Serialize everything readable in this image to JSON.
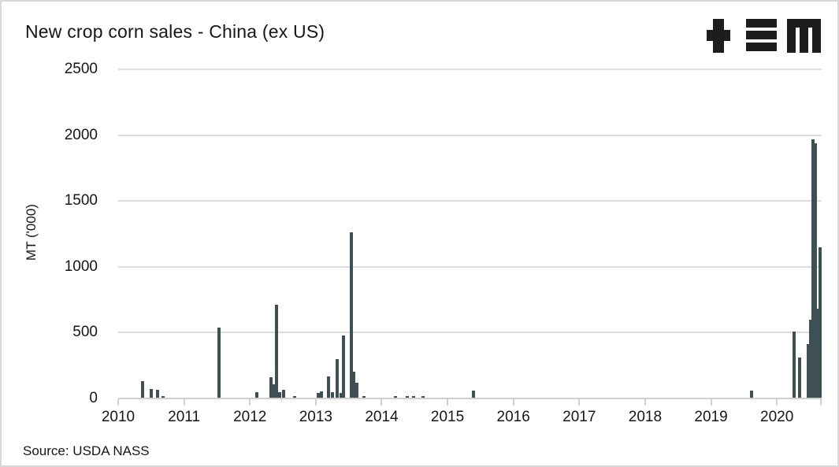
{
  "header": {
    "title": "New crop corn sales - China (ex US)"
  },
  "footer": {
    "source": "Source: USDA NASS"
  },
  "logo": {
    "name": "tem-logo",
    "glyphs": [
      "plus",
      "triple-bar",
      "m-mark"
    ]
  },
  "page": {
    "colors": {
      "bar": "#3f5055",
      "grid": "#dcdcdc",
      "axis": "#cfcfcf",
      "text": "#161616",
      "logo": "#1d1d1d",
      "background": "#ffffff",
      "border": "#d8d8d8"
    }
  },
  "chart_data": {
    "type": "bar",
    "title": "New crop corn sales - China (ex US)",
    "xlabel": "",
    "ylabel": "MT ('000)",
    "xlim": [
      2010,
      2020.68
    ],
    "ylim": [
      0,
      2500
    ],
    "x_ticks": [
      2010,
      2011,
      2012,
      2013,
      2014,
      2015,
      2016,
      2017,
      2018,
      2019,
      2020
    ],
    "y_ticks": [
      0,
      500,
      1000,
      1500,
      2000,
      2500
    ],
    "grid": "horizontal-only",
    "legend": "none",
    "points_format": "[year_decimal, mt_thousand]",
    "points": [
      [
        2010.37,
        130
      ],
      [
        2010.5,
        70
      ],
      [
        2010.6,
        65
      ],
      [
        2010.68,
        20
      ],
      [
        2011.53,
        540
      ],
      [
        2012.1,
        45
      ],
      [
        2012.32,
        160
      ],
      [
        2012.36,
        110
      ],
      [
        2012.4,
        710
      ],
      [
        2012.45,
        45
      ],
      [
        2012.51,
        65
      ],
      [
        2012.68,
        15
      ],
      [
        2013.04,
        40
      ],
      [
        2013.08,
        55
      ],
      [
        2013.19,
        165
      ],
      [
        2013.25,
        50
      ],
      [
        2013.33,
        300
      ],
      [
        2013.38,
        40
      ],
      [
        2013.42,
        480
      ],
      [
        2013.54,
        1260
      ],
      [
        2013.58,
        205
      ],
      [
        2013.62,
        120
      ],
      [
        2013.73,
        15
      ],
      [
        2014.21,
        20
      ],
      [
        2014.39,
        15
      ],
      [
        2014.48,
        15
      ],
      [
        2014.63,
        15
      ],
      [
        2015.39,
        60
      ],
      [
        2019.62,
        60
      ],
      [
        2020.26,
        510
      ],
      [
        2020.34,
        310
      ],
      [
        2020.48,
        410
      ],
      [
        2020.51,
        600
      ],
      [
        2020.55,
        1970
      ],
      [
        2020.59,
        1940
      ],
      [
        2020.62,
        680
      ],
      [
        2020.66,
        1150
      ]
    ]
  }
}
